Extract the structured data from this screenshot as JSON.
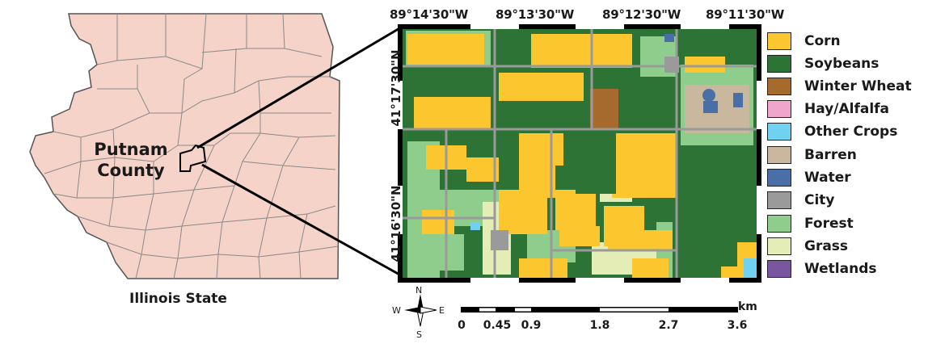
{
  "state_label": "Illinois State",
  "county_label_line1": "Putnam",
  "county_label_line2": "County",
  "top_longitudes": [
    "89°14'30\"W",
    "89°13'30\"W",
    "89°12'30\"W",
    "89°11'30\"W"
  ],
  "left_latitudes": [
    "41°17'30\"N",
    "41°16'30\"N"
  ],
  "legend": [
    {
      "label": "Corn",
      "color": "#fcc72e"
    },
    {
      "label": "Soybeans",
      "color": "#2e7336"
    },
    {
      "label": "Winter Wheat",
      "color": "#a56a2c"
    },
    {
      "label": "Hay/Alfalfa",
      "color": "#f0a6cc"
    },
    {
      "label": "Other Crops",
      "color": "#70d2f0"
    },
    {
      "label": "Barren",
      "color": "#c9b89e"
    },
    {
      "label": "Water",
      "color": "#4a6fa6"
    },
    {
      "label": "City",
      "color": "#9a9a9a"
    },
    {
      "label": "Forest",
      "color": "#8fcd8c"
    },
    {
      "label": "Grass",
      "color": "#e3edb5"
    },
    {
      "label": "Wetlands",
      "color": "#7a55a0"
    }
  ],
  "scale": {
    "unit": "km",
    "ticks": [
      "0",
      "0.45",
      "0.9",
      "1.8",
      "2.7",
      "3.6"
    ]
  },
  "compass": {
    "n": "N",
    "s": "S",
    "e": "E",
    "w": "W"
  },
  "colors": {
    "state_fill": "#f5d3c8",
    "county_border": "#8a8a8a",
    "road": "#9a9a9a"
  }
}
